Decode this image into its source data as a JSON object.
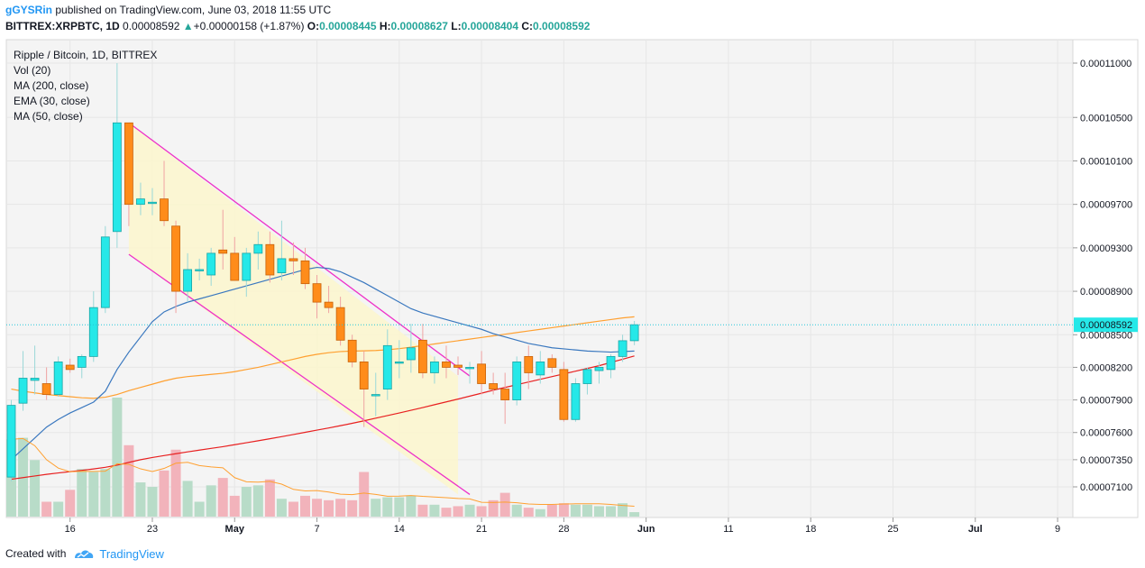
{
  "header": {
    "author": "gGYSRin",
    "published_text": "published on TradingView.com, June 03, 2018 11:55 UTC",
    "symbol": "BITTREX:XRPBTC, 1D",
    "last": "0.00008592",
    "change": "+0.00000158 (+1.87%)",
    "o_label": "O:",
    "o_value": "0.00008445",
    "h_label": "H:",
    "h_value": "0.00008627",
    "l_label": "L:",
    "l_value": "0.00008404",
    "c_label": "C:",
    "c_value": "0.00008592"
  },
  "legend": [
    "Ripple / Bitcoin, 1D, BITTREX",
    "Vol (20)",
    "MA (200, close)",
    "EMA (30, close)",
    "MA (50, close)"
  ],
  "footer": {
    "created_with": "Created with",
    "brand": "TradingView"
  },
  "colors": {
    "up": "#26e8e8",
    "down": "#ff8c1a",
    "vol_up": "#b8dcc8",
    "vol_down": "#f2b3bb",
    "ma200": "#e82020",
    "ema30": "#ffa030",
    "ma50": "#3a78bf",
    "channel": "#ee30c8",
    "fill": "#fbf6cc",
    "last_line": "#26c6da"
  },
  "chart_data": {
    "type": "candlestick",
    "symbol": "Ripple / Bitcoin",
    "interval": "1D",
    "exchange": "BITTREX",
    "y_ticks": [
      "0.00011000",
      "0.00010500",
      "0.00010100",
      "0.00009700",
      "0.00009300",
      "0.00008900",
      "0.00008500",
      "0.00008200",
      "0.00007900",
      "0.00007600",
      "0.00007350",
      "0.00007100"
    ],
    "x_ticks": [
      "16",
      "23",
      "May",
      "7",
      "14",
      "21",
      "28",
      "Jun",
      "11",
      "18",
      "25",
      "Jul",
      "9"
    ],
    "last_price": "0.00008592",
    "candles": [
      {
        "o": 7.19e-05,
        "h": 7.9e-05,
        "l": 7.15e-05,
        "c": 7.85e-05
      },
      {
        "o": 7.87e-05,
        "h": 8.35e-05,
        "l": 7.8e-05,
        "c": 8.1e-05
      },
      {
        "o": 8.08e-05,
        "h": 8.4e-05,
        "l": 7.95e-05,
        "c": 8.1e-05
      },
      {
        "o": 8.05e-05,
        "h": 8.2e-05,
        "l": 7.9e-05,
        "c": 7.95e-05
      },
      {
        "o": 7.95e-05,
        "h": 8.3e-05,
        "l": 7.93e-05,
        "c": 8.25e-05
      },
      {
        "o": 8.22e-05,
        "h": 8.28e-05,
        "l": 8.15e-05,
        "c": 8.18e-05
      },
      {
        "o": 8.2e-05,
        "h": 8.32e-05,
        "l": 8.1e-05,
        "c": 8.3e-05
      },
      {
        "o": 8.3e-05,
        "h": 8.9e-05,
        "l": 8.25e-05,
        "c": 8.75e-05
      },
      {
        "o": 8.75e-05,
        "h": 9.5e-05,
        "l": 8.7e-05,
        "c": 9.4e-05
      },
      {
        "o": 9.45e-05,
        "h": 0.00011,
        "l": 9.3e-05,
        "c": 0.0001045
      },
      {
        "o": 0.0001045,
        "h": 0.0001045,
        "l": 9.5e-05,
        "c": 9.7e-05
      },
      {
        "o": 9.7e-05,
        "h": 9.9e-05,
        "l": 9.6e-05,
        "c": 9.75e-05
      },
      {
        "o": 9.72e-05,
        "h": 9.85e-05,
        "l": 9.6e-05,
        "c": 9.72e-05
      },
      {
        "o": 9.75e-05,
        "h": 0.000101,
        "l": 9.5e-05,
        "c": 9.55e-05
      },
      {
        "o": 9.5e-05,
        "h": 9.55e-05,
        "l": 8.7e-05,
        "c": 8.9e-05
      },
      {
        "o": 8.9e-05,
        "h": 9.25e-05,
        "l": 8.8e-05,
        "c": 9.1e-05
      },
      {
        "o": 9.1e-05,
        "h": 9.2e-05,
        "l": 9e-05,
        "c": 9.1e-05
      },
      {
        "o": 9.05e-05,
        "h": 9.3e-05,
        "l": 8.95e-05,
        "c": 9.25e-05
      },
      {
        "o": 9.28e-05,
        "h": 9.65e-05,
        "l": 9.1e-05,
        "c": 9.25e-05
      },
      {
        "o": 9.25e-05,
        "h": 9.4e-05,
        "l": 9e-05,
        "c": 9e-05
      },
      {
        "o": 9e-05,
        "h": 9.3e-05,
        "l": 8.85e-05,
        "c": 9.25e-05
      },
      {
        "o": 9.25e-05,
        "h": 9.45e-05,
        "l": 9.1e-05,
        "c": 9.33e-05
      },
      {
        "o": 9.33e-05,
        "h": 9.45e-05,
        "l": 8.98e-05,
        "c": 9.05e-05
      },
      {
        "o": 9.07e-05,
        "h": 9.55e-05,
        "l": 9e-05,
        "c": 9.2e-05
      },
      {
        "o": 9.2e-05,
        "h": 9.35e-05,
        "l": 9.05e-05,
        "c": 9.18e-05
      },
      {
        "o": 9.18e-05,
        "h": 9.3e-05,
        "l": 8.92e-05,
        "c": 8.97e-05
      },
      {
        "o": 8.97e-05,
        "h": 9.05e-05,
        "l": 8.65e-05,
        "c": 8.8e-05
      },
      {
        "o": 8.8e-05,
        "h": 8.95e-05,
        "l": 8.7e-05,
        "c": 8.75e-05
      },
      {
        "o": 8.75e-05,
        "h": 8.85e-05,
        "l": 8.4e-05,
        "c": 8.45e-05
      },
      {
        "o": 8.45e-05,
        "h": 8.5e-05,
        "l": 8.2e-05,
        "c": 8.25e-05
      },
      {
        "o": 8.25e-05,
        "h": 8.35e-05,
        "l": 7.65e-05,
        "c": 8e-05
      },
      {
        "o": 7.95e-05,
        "h": 8.15e-05,
        "l": 7.75e-05,
        "c": 7.95e-05
      },
      {
        "o": 8e-05,
        "h": 8.55e-05,
        "l": 7.9e-05,
        "c": 8.4e-05
      },
      {
        "o": 8.25e-05,
        "h": 8.45e-05,
        "l": 8.1e-05,
        "c": 8.25e-05
      },
      {
        "o": 8.27e-05,
        "h": 8.6e-05,
        "l": 8.15e-05,
        "c": 8.38e-05
      },
      {
        "o": 8.45e-05,
        "h": 8.6e-05,
        "l": 8.1e-05,
        "c": 8.15e-05
      },
      {
        "o": 8.15e-05,
        "h": 8.3e-05,
        "l": 8.05e-05,
        "c": 8.25e-05
      },
      {
        "o": 8.25e-05,
        "h": 8.4e-05,
        "l": 8.1e-05,
        "c": 8.2e-05
      },
      {
        "o": 8.22e-05,
        "h": 8.3e-05,
        "l": 8.13e-05,
        "c": 8.2e-05
      },
      {
        "o": 8.2e-05,
        "h": 8.25e-05,
        "l": 8.05e-05,
        "c": 8.2e-05
      },
      {
        "o": 8.23e-05,
        "h": 8.35e-05,
        "l": 7.95e-05,
        "c": 8.05e-05
      },
      {
        "o": 8.05e-05,
        "h": 8.15e-05,
        "l": 7.95e-05,
        "c": 8e-05
      },
      {
        "o": 8e-05,
        "h": 8.15e-05,
        "l": 7.68e-05,
        "c": 7.9e-05
      },
      {
        "o": 7.9e-05,
        "h": 8.3e-05,
        "l": 7.85e-05,
        "c": 8.25e-05
      },
      {
        "o": 8.3e-05,
        "h": 8.4e-05,
        "l": 8e-05,
        "c": 8.15e-05
      },
      {
        "o": 8.13e-05,
        "h": 8.35e-05,
        "l": 8.05e-05,
        "c": 8.25e-05
      },
      {
        "o": 8.28e-05,
        "h": 8.32e-05,
        "l": 8.15e-05,
        "c": 8.2e-05
      },
      {
        "o": 8.18e-05,
        "h": 8.25e-05,
        "l": 7.7e-05,
        "c": 7.72e-05
      },
      {
        "o": 7.72e-05,
        "h": 8.1e-05,
        "l": 7.7e-05,
        "c": 8.05e-05
      },
      {
        "o": 8.05e-05,
        "h": 8.2e-05,
        "l": 7.95e-05,
        "c": 8.18e-05
      },
      {
        "o": 8.17e-05,
        "h": 8.25e-05,
        "l": 8.05e-05,
        "c": 8.2e-05
      },
      {
        "o": 8.18e-05,
        "h": 8.32e-05,
        "l": 8.1e-05,
        "c": 8.3e-05
      },
      {
        "o": 8.3e-05,
        "h": 8.5e-05,
        "l": 8.25e-05,
        "c": 8.445e-05
      },
      {
        "o": 8.445e-05,
        "h": 8.627e-05,
        "l": 8.404e-05,
        "c": 8.592e-05
      }
    ],
    "volume": [
      0.52,
      0.53,
      0.38,
      0.1,
      0.1,
      0.18,
      0.32,
      0.3,
      0.32,
      0.8,
      0.48,
      0.23,
      0.2,
      0.31,
      0.45,
      0.24,
      0.1,
      0.21,
      0.26,
      0.14,
      0.2,
      0.21,
      0.25,
      0.12,
      0.1,
      0.14,
      0.12,
      0.11,
      0.12,
      0.11,
      0.3,
      0.12,
      0.13,
      0.13,
      0.14,
      0.08,
      0.08,
      0.06,
      0.07,
      0.08,
      0.07,
      0.11,
      0.16,
      0.08,
      0.06,
      0.05,
      0.08,
      0.09,
      0.08,
      0.08,
      0.07,
      0.07,
      0.09,
      0.03
    ],
    "ma200": [
      7.17e-05,
      7.185e-05,
      7.2e-05,
      7.215e-05,
      7.228e-05,
      7.24e-05,
      7.252e-05,
      7.265e-05,
      7.28e-05,
      7.3e-05,
      7.325e-05,
      7.35e-05,
      7.37e-05,
      7.388e-05,
      7.405e-05,
      7.422e-05,
      7.438e-05,
      7.454e-05,
      7.47e-05,
      7.488e-05,
      7.506e-05,
      7.524e-05,
      7.543e-05,
      7.562e-05,
      7.582e-05,
      7.602e-05,
      7.622e-05,
      7.642e-05,
      7.663e-05,
      7.685e-05,
      7.708e-05,
      7.732e-05,
      7.756e-05,
      7.78e-05,
      7.805e-05,
      7.83e-05,
      7.856e-05,
      7.882e-05,
      7.908e-05,
      7.935e-05,
      7.962e-05,
      7.99e-05,
      8.015e-05,
      8.04e-05,
      8.065e-05,
      8.09e-05,
      8.115e-05,
      8.14e-05,
      8.165e-05,
      8.19e-05,
      8.215e-05,
      8.245e-05,
      8.275e-05,
      8.305e-05
    ],
    "ema30": [
      8e-05,
      7.98e-05,
      7.965e-05,
      7.95e-05,
      7.94e-05,
      7.93e-05,
      7.92e-05,
      7.915e-05,
      7.925e-05,
      7.95e-05,
      7.985e-05,
      8.015e-05,
      8.045e-05,
      8.075e-05,
      8.1e-05,
      8.115e-05,
      8.125e-05,
      8.135e-05,
      8.145e-05,
      8.16e-05,
      8.18e-05,
      8.2e-05,
      8.225e-05,
      8.25e-05,
      8.275e-05,
      8.3e-05,
      8.32e-05,
      8.335e-05,
      8.345e-05,
      8.35e-05,
      8.352e-05,
      8.355e-05,
      8.362e-05,
      8.372e-05,
      8.385e-05,
      8.4e-05,
      8.415e-05,
      8.43e-05,
      8.445e-05,
      8.46e-05,
      8.475e-05,
      8.49e-05,
      8.505e-05,
      8.52e-05,
      8.535e-05,
      8.55e-05,
      8.565e-05,
      8.58e-05,
      8.595e-05,
      8.61e-05,
      8.625e-05,
      8.64e-05,
      8.655e-05,
      8.665e-05
    ],
    "ma50": [
      7.35e-05,
      7.45e-05,
      7.55e-05,
      7.65e-05,
      7.72e-05,
      7.78e-05,
      7.83e-05,
      7.88e-05,
      7.98e-05,
      8.18e-05,
      8.34e-05,
      8.48e-05,
      8.62e-05,
      8.71e-05,
      8.76e-05,
      8.8e-05,
      8.83e-05,
      8.86e-05,
      8.89e-05,
      8.92e-05,
      8.95e-05,
      8.98e-05,
      9.01e-05,
      9.04e-05,
      9.07e-05,
      9.1e-05,
      9.12e-05,
      9.11e-05,
      9.08e-05,
      9.03e-05,
      8.98e-05,
      8.92e-05,
      8.86e-05,
      8.8e-05,
      8.74e-05,
      8.7e-05,
      8.67e-05,
      8.64e-05,
      8.61e-05,
      8.58e-05,
      8.55e-05,
      8.51e-05,
      8.48e-05,
      8.45e-05,
      8.42e-05,
      8.4e-05,
      8.38e-05,
      8.37e-05,
      8.36e-05,
      8.35e-05,
      8.345e-05,
      8.34e-05,
      8.345e-05,
      8.35e-05
    ]
  }
}
